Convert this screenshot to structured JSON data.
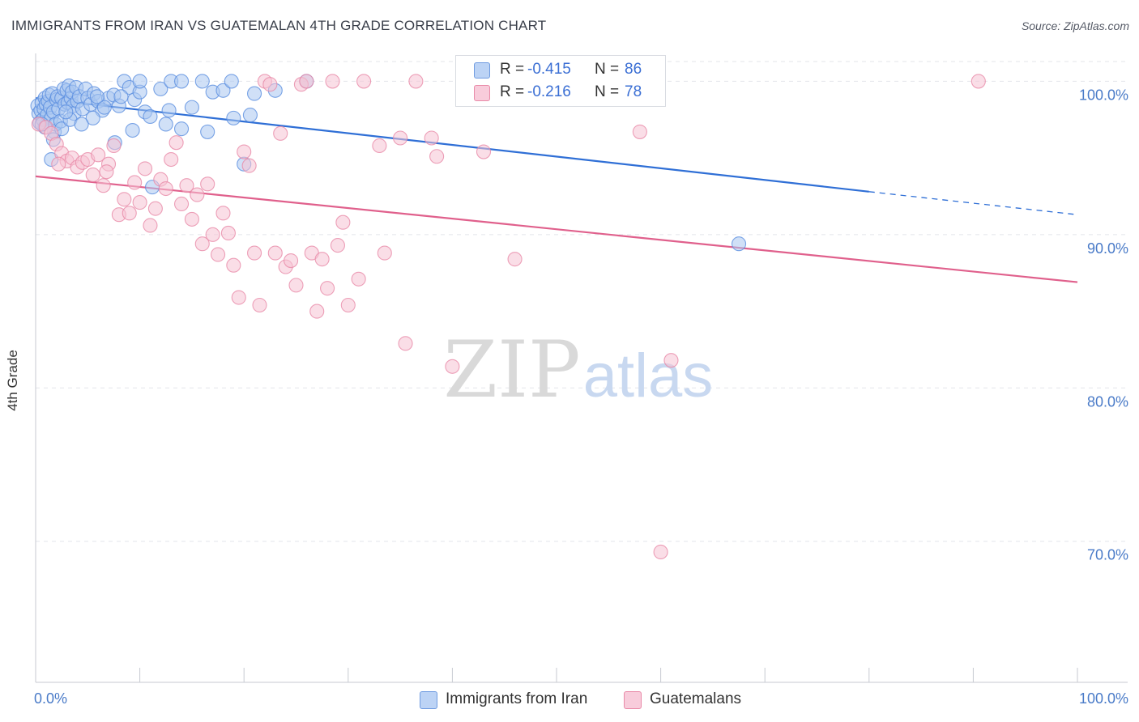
{
  "title": "IMMIGRANTS FROM IRAN VS GUATEMALAN 4TH GRADE CORRELATION CHART",
  "source": "Source: ZipAtlas.com",
  "watermark": {
    "zip": "ZIP",
    "atlas": "atlas"
  },
  "chart_data": {
    "type": "scatter",
    "ylabel": "4th Grade",
    "xlim": [
      0,
      100
    ],
    "ylim": [
      60.8,
      101.5
    ],
    "x_tick_labels": [
      "0.0%",
      "100.0%"
    ],
    "y_ticks": [
      {
        "value": 100,
        "label": "100.0%"
      },
      {
        "value": 90,
        "label": "90.0%"
      },
      {
        "value": 80,
        "label": "80.0%"
      },
      {
        "value": 70,
        "label": "70.0%"
      }
    ],
    "grid": true,
    "legend": {
      "placement": "top-center",
      "rows": [
        {
          "r_label": "R =",
          "r_value": "-0.415",
          "n_label": "N =",
          "n_value": "86"
        },
        {
          "r_label": "R =",
          "r_value": "-0.216",
          "n_label": "N =",
          "n_value": "78"
        }
      ]
    },
    "series": [
      {
        "name": "Immigrants from Iran",
        "color": "#5b8fe0",
        "fill": "#a9c6f0",
        "trend": {
          "x0": 0,
          "y0": 98.9,
          "x1": 80,
          "y1": 92.8,
          "dash_to_x": 100,
          "dash_to_y": 91.3
        },
        "points": [
          [
            0.2,
            98.4
          ],
          [
            0.3,
            97.9
          ],
          [
            0.4,
            97.3
          ],
          [
            0.5,
            98.1
          ],
          [
            0.6,
            98.6
          ],
          [
            0.7,
            97.5
          ],
          [
            0.8,
            98.2
          ],
          [
            0.9,
            98.9
          ],
          [
            1.0,
            98.5
          ],
          [
            1.1,
            97.8
          ],
          [
            1.2,
            98.7
          ],
          [
            1.3,
            99.1
          ],
          [
            1.4,
            98.3
          ],
          [
            1.5,
            97.6
          ],
          [
            1.6,
            99.2
          ],
          [
            1.7,
            98.0
          ],
          [
            1.8,
            96.7
          ],
          [
            1.9,
            97.2
          ],
          [
            2.0,
            98.8
          ],
          [
            2.1,
            99.0
          ],
          [
            2.2,
            98.2
          ],
          [
            2.4,
            97.4
          ],
          [
            2.5,
            98.9
          ],
          [
            2.7,
            99.5
          ],
          [
            2.8,
            98.5
          ],
          [
            3.0,
            99.4
          ],
          [
            3.1,
            98.6
          ],
          [
            3.2,
            99.7
          ],
          [
            3.4,
            98.9
          ],
          [
            3.5,
            99.3
          ],
          [
            3.6,
            98.4
          ],
          [
            3.7,
            97.9
          ],
          [
            3.9,
            99.6
          ],
          [
            4.0,
            98.7
          ],
          [
            4.2,
            99.0
          ],
          [
            4.5,
            98.2
          ],
          [
            4.8,
            99.5
          ],
          [
            5.0,
            98.9
          ],
          [
            5.3,
            98.5
          ],
          [
            5.6,
            99.2
          ],
          [
            6.0,
            98.7
          ],
          [
            6.4,
            98.1
          ],
          [
            7.0,
            98.9
          ],
          [
            7.5,
            99.1
          ],
          [
            8.0,
            98.4
          ],
          [
            8.5,
            100.0
          ],
          [
            9.0,
            99.6
          ],
          [
            9.5,
            98.8
          ],
          [
            10.0,
            99.3
          ],
          [
            10.5,
            98.0
          ],
          [
            11.0,
            97.7
          ],
          [
            12.0,
            99.5
          ],
          [
            13.0,
            100.0
          ],
          [
            14.0,
            100.0
          ],
          [
            17.0,
            99.3
          ],
          [
            18.0,
            99.4
          ],
          [
            19.0,
            97.6
          ],
          [
            20.0,
            94.6
          ],
          [
            21.0,
            99.2
          ],
          [
            23.0,
            99.4
          ],
          [
            1.5,
            94.9
          ],
          [
            2.5,
            96.9
          ],
          [
            5.5,
            97.6
          ],
          [
            7.6,
            96.0
          ],
          [
            9.3,
            96.8
          ],
          [
            11.2,
            93.1
          ],
          [
            12.5,
            97.2
          ],
          [
            14.0,
            96.9
          ],
          [
            16.5,
            96.7
          ],
          [
            10.0,
            100.0
          ],
          [
            16.0,
            100.0
          ],
          [
            18.8,
            100.0
          ],
          [
            20.6,
            97.8
          ],
          [
            26.0,
            100.0
          ],
          [
            0.9,
            97.0
          ],
          [
            1.7,
            96.2
          ],
          [
            3.3,
            97.5
          ],
          [
            4.4,
            97.2
          ],
          [
            6.6,
            98.3
          ],
          [
            8.2,
            99.0
          ],
          [
            12.8,
            98.1
          ],
          [
            15.0,
            98.3
          ],
          [
            5.9,
            99.0
          ],
          [
            2.9,
            98.0
          ],
          [
            0.6,
            97.2
          ],
          [
            67.5,
            89.4
          ]
        ]
      },
      {
        "name": "Guatemalans",
        "color": "#e98aa8",
        "fill": "#f5c3d3",
        "trend": {
          "x0": 0,
          "y0": 93.8,
          "x1": 100,
          "y1": 86.9
        },
        "points": [
          [
            0.3,
            97.2
          ],
          [
            1.0,
            97.0
          ],
          [
            1.5,
            96.6
          ],
          [
            2.0,
            95.9
          ],
          [
            2.5,
            95.3
          ],
          [
            3.0,
            94.8
          ],
          [
            3.5,
            95.0
          ],
          [
            4.0,
            94.4
          ],
          [
            4.5,
            94.7
          ],
          [
            5.0,
            94.9
          ],
          [
            5.5,
            93.9
          ],
          [
            6.0,
            95.2
          ],
          [
            6.5,
            93.2
          ],
          [
            7.0,
            94.6
          ],
          [
            7.5,
            95.8
          ],
          [
            8.0,
            91.3
          ],
          [
            8.5,
            92.3
          ],
          [
            9.0,
            91.4
          ],
          [
            9.5,
            93.4
          ],
          [
            10.0,
            92.1
          ],
          [
            10.5,
            94.3
          ],
          [
            11.0,
            90.6
          ],
          [
            11.5,
            91.7
          ],
          [
            12.0,
            93.6
          ],
          [
            12.5,
            93.0
          ],
          [
            13.0,
            94.9
          ],
          [
            13.5,
            96.0
          ],
          [
            14.0,
            92.0
          ],
          [
            14.5,
            93.2
          ],
          [
            15.0,
            91.0
          ],
          [
            15.5,
            92.6
          ],
          [
            16.0,
            89.4
          ],
          [
            16.5,
            93.3
          ],
          [
            17.0,
            90.0
          ],
          [
            17.5,
            88.7
          ],
          [
            18.0,
            91.4
          ],
          [
            18.5,
            90.1
          ],
          [
            19.0,
            88.0
          ],
          [
            19.5,
            85.9
          ],
          [
            20.0,
            95.4
          ],
          [
            20.5,
            94.5
          ],
          [
            21.0,
            88.8
          ],
          [
            21.5,
            85.4
          ],
          [
            22.0,
            100.0
          ],
          [
            22.5,
            99.8
          ],
          [
            23.0,
            88.8
          ],
          [
            23.5,
            96.6
          ],
          [
            24.0,
            87.9
          ],
          [
            24.5,
            88.3
          ],
          [
            25.0,
            86.7
          ],
          [
            25.5,
            99.8
          ],
          [
            26.0,
            100.0
          ],
          [
            26.5,
            88.8
          ],
          [
            27.0,
            85.0
          ],
          [
            27.5,
            88.4
          ],
          [
            28.0,
            86.5
          ],
          [
            28.5,
            100.0
          ],
          [
            29.0,
            89.3
          ],
          [
            29.5,
            90.8
          ],
          [
            30.0,
            85.4
          ],
          [
            31.0,
            87.1
          ],
          [
            31.5,
            100.0
          ],
          [
            33.0,
            95.8
          ],
          [
            33.5,
            88.8
          ],
          [
            35.0,
            96.3
          ],
          [
            35.5,
            82.9
          ],
          [
            36.5,
            100.0
          ],
          [
            38.0,
            96.3
          ],
          [
            38.5,
            95.1
          ],
          [
            40.0,
            81.4
          ],
          [
            43.0,
            95.4
          ],
          [
            46.0,
            88.4
          ],
          [
            58.0,
            96.7
          ],
          [
            60.0,
            69.3
          ],
          [
            61.0,
            81.8
          ],
          [
            90.5,
            100.0
          ],
          [
            2.2,
            94.6
          ],
          [
            6.8,
            94.1
          ]
        ]
      }
    ]
  }
}
